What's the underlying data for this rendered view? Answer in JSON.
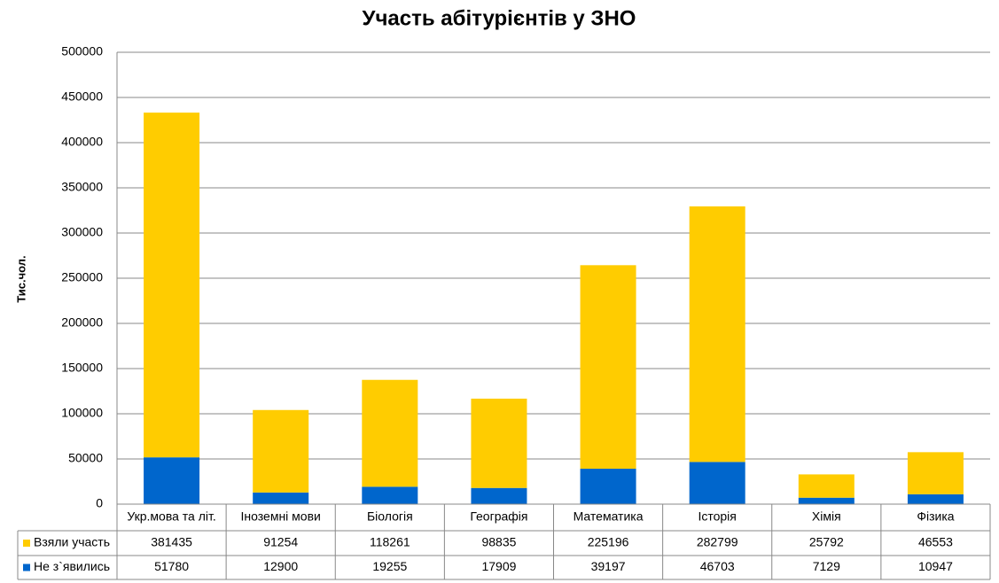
{
  "chart_data": {
    "type": "stacked_bar",
    "title": "Участь абітурієнтів у ЗНО",
    "y_label": "Тис.чол.",
    "categories": [
      "Укр.мова та літ.",
      "Іноземні мови",
      "Біологія",
      "Географія",
      "Математика",
      "Історія",
      "Хімія",
      "Фізика"
    ],
    "series": [
      {
        "name": "Взяли участь",
        "color": "#FFCC00",
        "values": [
          381435,
          91254,
          118261,
          98835,
          225196,
          282799,
          25792,
          46553
        ]
      },
      {
        "name": "Не з`явились",
        "color": "#0066CC",
        "values": [
          51780,
          12900,
          19255,
          17909,
          39197,
          46703,
          7129,
          10947
        ]
      }
    ],
    "ylim": [
      0,
      500000
    ],
    "yticks": [
      0,
      50000,
      100000,
      150000,
      200000,
      250000,
      300000,
      350000,
      400000,
      450000,
      500000
    ],
    "grid": true
  }
}
